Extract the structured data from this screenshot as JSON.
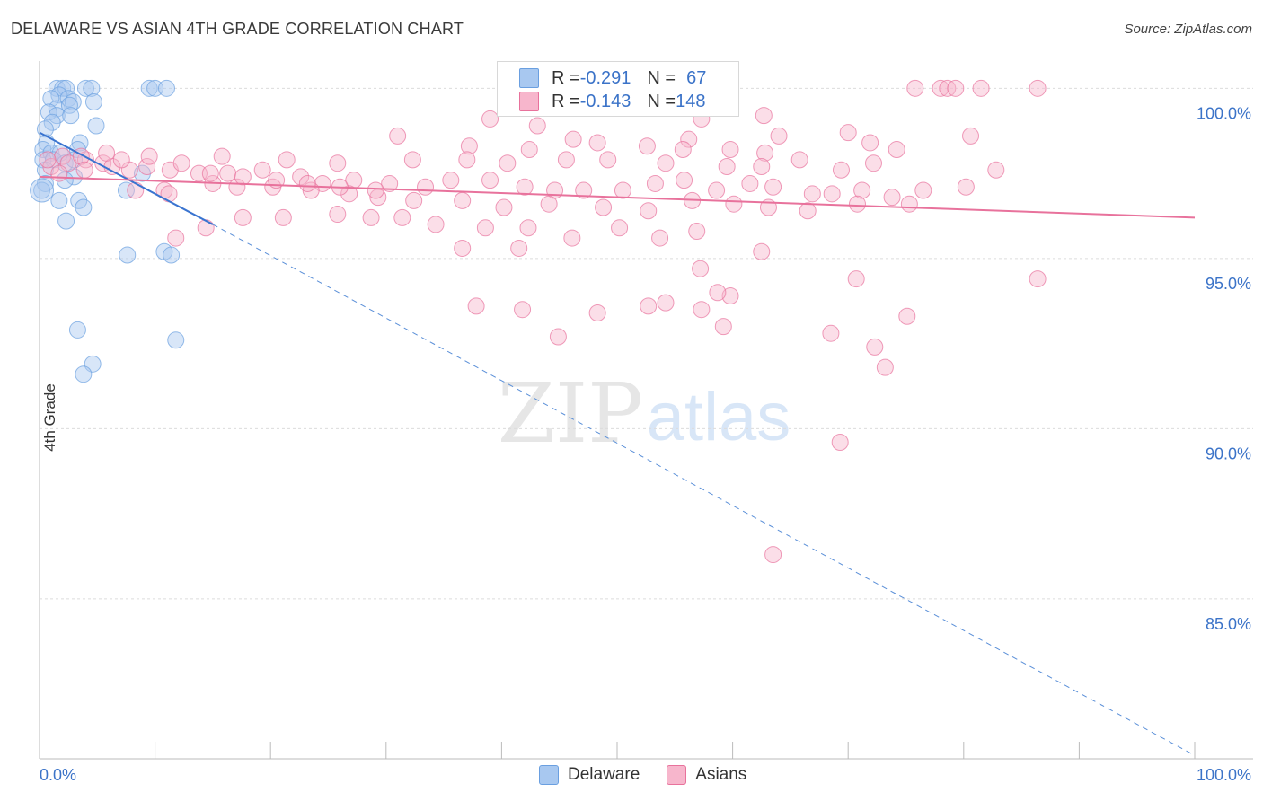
{
  "title": "DELAWARE VS ASIAN 4TH GRADE CORRELATION CHART",
  "source": "Source: ZipAtlas.com",
  "watermark": {
    "zip": "ZIP",
    "atlas": "atlas"
  },
  "legend": {
    "rows": [
      {
        "r_label": "R = ",
        "r_value": "-0.291",
        "n_label": "N = ",
        "n_value": "67",
        "color": "#a8c8f0"
      },
      {
        "r_label": "R = ",
        "r_value": "-0.143",
        "n_label": "N = ",
        "n_value": "148",
        "color": "#f7b6cc"
      }
    ]
  },
  "bottom_legend": [
    {
      "label": "Delaware",
      "color": "#a8c8f0"
    },
    {
      "label": "Asians",
      "color": "#f7b6cc"
    }
  ],
  "chart_data": {
    "type": "scatter",
    "xlabel": "",
    "ylabel": "4th Grade",
    "xlim": [
      0,
      100
    ],
    "ylim": [
      80.3,
      100.8
    ],
    "x_tick_labels": {
      "left": "0.0%",
      "right": "100.0%"
    },
    "y_ticks": [
      {
        "value": 100,
        "label": "100.0%"
      },
      {
        "value": 95,
        "label": "95.0%"
      },
      {
        "value": 90,
        "label": "90.0%"
      },
      {
        "value": 85,
        "label": "85.0%"
      }
    ],
    "grid": true,
    "series": [
      {
        "name": "Delaware",
        "color": "#6a9fe0",
        "fill": "#a8c8f0",
        "trend": {
          "x": [
            0,
            15
          ],
          "y": [
            98.7,
            96.0
          ],
          "dash_to": [
            100,
            80.4
          ]
        },
        "points": [
          [
            1.5,
            100
          ],
          [
            2,
            100
          ],
          [
            2.3,
            100
          ],
          [
            4,
            100
          ],
          [
            4.5,
            100
          ],
          [
            9.5,
            100
          ],
          [
            10,
            100
          ],
          [
            11,
            100
          ],
          [
            1.7,
            99.8
          ],
          [
            1,
            99.7
          ],
          [
            2.5,
            99.7
          ],
          [
            2.9,
            99.6
          ],
          [
            1.5,
            99.4
          ],
          [
            2.6,
            99.5
          ],
          [
            4.7,
            99.6
          ],
          [
            0.8,
            99.3
          ],
          [
            1.5,
            99.2
          ],
          [
            2.7,
            99.2
          ],
          [
            1.1,
            99.0
          ],
          [
            0.5,
            98.8
          ],
          [
            4.9,
            98.9
          ],
          [
            0.6,
            98.4
          ],
          [
            3.5,
            98.4
          ],
          [
            0.3,
            98.2
          ],
          [
            1,
            98.1
          ],
          [
            1.8,
            98.1
          ],
          [
            3.3,
            98.2
          ],
          [
            0.3,
            97.9
          ],
          [
            1.2,
            97.9
          ],
          [
            2.2,
            97.8
          ],
          [
            3.0,
            97.9
          ],
          [
            0.5,
            97.6
          ],
          [
            3,
            97.4
          ],
          [
            2.2,
            97.3
          ],
          [
            0.5,
            97.2
          ],
          [
            8.9,
            97.5
          ],
          [
            7.5,
            97.0
          ],
          [
            1.7,
            96.7
          ],
          [
            0.2,
            97.0
          ],
          [
            3.4,
            96.7
          ],
          [
            3.8,
            96.5
          ],
          [
            2.3,
            96.1
          ],
          [
            7.6,
            95.1
          ],
          [
            10.8,
            95.2
          ],
          [
            11.4,
            95.1
          ],
          [
            3.3,
            92.9
          ],
          [
            11.8,
            92.6
          ],
          [
            4.6,
            91.9
          ],
          [
            3.8,
            91.6
          ]
        ]
      },
      {
        "name": "Asians",
        "color": "#e8729c",
        "fill": "#f7b6cc",
        "trend": {
          "x": [
            0,
            100
          ],
          "y": [
            97.4,
            96.2
          ]
        },
        "points": [
          [
            75.8,
            100
          ],
          [
            78,
            100
          ],
          [
            78.6,
            100
          ],
          [
            79.3,
            100
          ],
          [
            81.5,
            100
          ],
          [
            86.4,
            100
          ],
          [
            39,
            99.1
          ],
          [
            43.1,
            98.9
          ],
          [
            62.7,
            99.2
          ],
          [
            57.3,
            99.1
          ],
          [
            70,
            98.7
          ],
          [
            31,
            98.6
          ],
          [
            46.2,
            98.5
          ],
          [
            56.2,
            98.5
          ],
          [
            64,
            98.6
          ],
          [
            71.9,
            98.4
          ],
          [
            37.2,
            98.3
          ],
          [
            42.4,
            98.2
          ],
          [
            48.3,
            98.4
          ],
          [
            52.6,
            98.3
          ],
          [
            55.7,
            98.2
          ],
          [
            59.8,
            98.2
          ],
          [
            62.8,
            98.1
          ],
          [
            74.2,
            98.2
          ],
          [
            80.6,
            98.6
          ],
          [
            15.8,
            98.0
          ],
          [
            21.4,
            97.9
          ],
          [
            25.8,
            97.8
          ],
          [
            32.3,
            97.9
          ],
          [
            37,
            97.9
          ],
          [
            40.5,
            97.8
          ],
          [
            45.6,
            97.9
          ],
          [
            49.2,
            97.9
          ],
          [
            54.2,
            97.8
          ],
          [
            59.5,
            97.7
          ],
          [
            62.5,
            97.7
          ],
          [
            65.8,
            97.9
          ],
          [
            69.4,
            97.6
          ],
          [
            72.2,
            97.8
          ],
          [
            82.8,
            97.6
          ],
          [
            2,
            98.0
          ],
          [
            4,
            97.9
          ],
          [
            5.5,
            97.8
          ],
          [
            6.3,
            97.7
          ],
          [
            7.8,
            97.6
          ],
          [
            9.3,
            97.7
          ],
          [
            11.3,
            97.6
          ],
          [
            13.8,
            97.5
          ],
          [
            16.3,
            97.5
          ],
          [
            19.3,
            97.6
          ],
          [
            22.6,
            97.4
          ],
          [
            24.5,
            97.2
          ],
          [
            27.2,
            97.3
          ],
          [
            30.3,
            97.2
          ],
          [
            33.4,
            97.1
          ],
          [
            35.6,
            97.3
          ],
          [
            39,
            97.3
          ],
          [
            42,
            97.1
          ],
          [
            44.6,
            97.0
          ],
          [
            47.1,
            97.0
          ],
          [
            50.5,
            97.0
          ],
          [
            53.3,
            97.2
          ],
          [
            55.8,
            97.3
          ],
          [
            58.6,
            97.0
          ],
          [
            61.5,
            97.2
          ],
          [
            63.5,
            97.1
          ],
          [
            66.9,
            96.9
          ],
          [
            68.6,
            96.9
          ],
          [
            71.2,
            97.0
          ],
          [
            73.8,
            96.8
          ],
          [
            76.5,
            97.0
          ],
          [
            80.2,
            97.1
          ],
          [
            10.8,
            97.0
          ],
          [
            15,
            97.2
          ],
          [
            17.1,
            97.1
          ],
          [
            20.2,
            97.1
          ],
          [
            23.5,
            97.0
          ],
          [
            26.8,
            96.9
          ],
          [
            29.3,
            96.8
          ],
          [
            32.4,
            96.7
          ],
          [
            36.6,
            96.7
          ],
          [
            40.2,
            96.5
          ],
          [
            44.1,
            96.6
          ],
          [
            48.8,
            96.5
          ],
          [
            52.7,
            96.4
          ],
          [
            56.5,
            96.7
          ],
          [
            60.1,
            96.6
          ],
          [
            63.1,
            96.5
          ],
          [
            66.5,
            96.4
          ],
          [
            70.8,
            96.6
          ],
          [
            75.3,
            96.6
          ],
          [
            8.3,
            97.0
          ],
          [
            11.2,
            96.9
          ],
          [
            17.6,
            96.2
          ],
          [
            21.1,
            96.2
          ],
          [
            25.8,
            96.3
          ],
          [
            28.7,
            96.2
          ],
          [
            31.4,
            96.2
          ],
          [
            34.3,
            96.0
          ],
          [
            38.6,
            95.9
          ],
          [
            42.3,
            95.9
          ],
          [
            46.1,
            95.6
          ],
          [
            50.2,
            95.9
          ],
          [
            53.7,
            95.6
          ],
          [
            56.9,
            95.8
          ],
          [
            11.8,
            95.6
          ],
          [
            14.4,
            95.9
          ],
          [
            36.6,
            95.3
          ],
          [
            41.5,
            95.3
          ],
          [
            62.5,
            95.2
          ],
          [
            57.2,
            94.7
          ],
          [
            70.7,
            94.4
          ],
          [
            86.4,
            94.4
          ],
          [
            37.8,
            93.6
          ],
          [
            41.8,
            93.5
          ],
          [
            52.7,
            93.6
          ],
          [
            57.3,
            93.5
          ],
          [
            59.2,
            93.0
          ],
          [
            59.8,
            93.9
          ],
          [
            75.1,
            93.3
          ],
          [
            68.5,
            92.8
          ],
          [
            72.3,
            92.4
          ],
          [
            73.2,
            91.8
          ],
          [
            69.3,
            89.6
          ],
          [
            63.5,
            86.3
          ],
          [
            44.9,
            92.7
          ],
          [
            48.3,
            93.4
          ],
          [
            54.2,
            93.7
          ],
          [
            58.7,
            94.0
          ],
          [
            2.5,
            97.8
          ],
          [
            3.6,
            98.0
          ],
          [
            5.8,
            98.1
          ],
          [
            7.1,
            97.9
          ],
          [
            9.5,
            98.0
          ],
          [
            12.3,
            97.8
          ],
          [
            14.8,
            97.5
          ],
          [
            17.6,
            97.4
          ],
          [
            20.5,
            97.3
          ],
          [
            23.2,
            97.2
          ],
          [
            26.0,
            97.1
          ],
          [
            29.1,
            97.0
          ],
          [
            1.0,
            97.7
          ],
          [
            1.7,
            97.5
          ],
          [
            0.7,
            97.9
          ],
          [
            3.9,
            97.6
          ]
        ]
      }
    ]
  }
}
